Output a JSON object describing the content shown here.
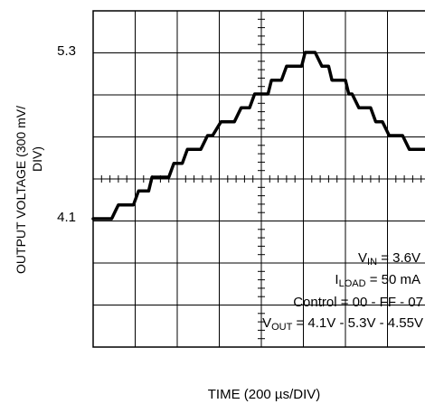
{
  "chart_data": {
    "type": "line",
    "xlabel": "TIME (200 µs/DIV)",
    "ylabel_line1": "OUTPUT VOLTAGE (300 mV/",
    "ylabel_line2": "DIV)",
    "yticks": [
      {
        "label": "5.3",
        "value": 5.3
      },
      {
        "label": "4.1",
        "value": 4.1
      }
    ],
    "ylim": [
      3.5,
      5.6
    ],
    "xlim": [
      0,
      2000
    ],
    "grid": true,
    "series": [
      {
        "values_x": [
          0,
          30,
          60,
          90,
          110,
          150,
          170,
          200,
          240,
          270,
          310,
          330,
          350,
          400,
          420,
          450,
          480,
          530,
          560,
          600,
          640,
          680,
          710,
          760,
          800,
          840,
          880,
          900,
          930,
          960,
          1000,
          1040,
          1060,
          1090,
          1120,
          1150,
          1180,
          1240,
          1260,
          1280,
          1320,
          1360,
          1400,
          1420,
          1450,
          1500,
          1520,
          1540,
          1580,
          1620,
          1650,
          1680,
          1720,
          1760,
          1800,
          1840,
          1880,
          1920,
          1960,
          2000
        ],
        "values_y": [
          4.1,
          4.1,
          4.1,
          4.1,
          4.1,
          4.2,
          4.2,
          4.2,
          4.2,
          4.3,
          4.3,
          4.3,
          4.4,
          4.4,
          4.4,
          4.4,
          4.5,
          4.5,
          4.6,
          4.6,
          4.6,
          4.7,
          4.7,
          4.8,
          4.8,
          4.8,
          4.9,
          4.9,
          4.9,
          5.0,
          5.0,
          5.0,
          5.1,
          5.1,
          5.1,
          5.2,
          5.2,
          5.2,
          5.3,
          5.3,
          5.3,
          5.2,
          5.2,
          5.1,
          5.1,
          5.1,
          5.0,
          5.0,
          4.9,
          4.9,
          4.9,
          4.8,
          4.8,
          4.7,
          4.7,
          4.7,
          4.6,
          4.6,
          4.6,
          4.6
        ]
      }
    ]
  },
  "annotations": {
    "vin_main": "V",
    "vin_sub": "IN",
    "vin_rest": " = 3.6V",
    "iload_main": "I",
    "iload_sub": "LOAD",
    "iload_rest": " = 50 mA",
    "control": "Control = 00 - FF - 07",
    "vout_main": "V",
    "vout_sub": "OUT",
    "vout_rest": " = 4.1V - 5.3V - 4.55V"
  }
}
